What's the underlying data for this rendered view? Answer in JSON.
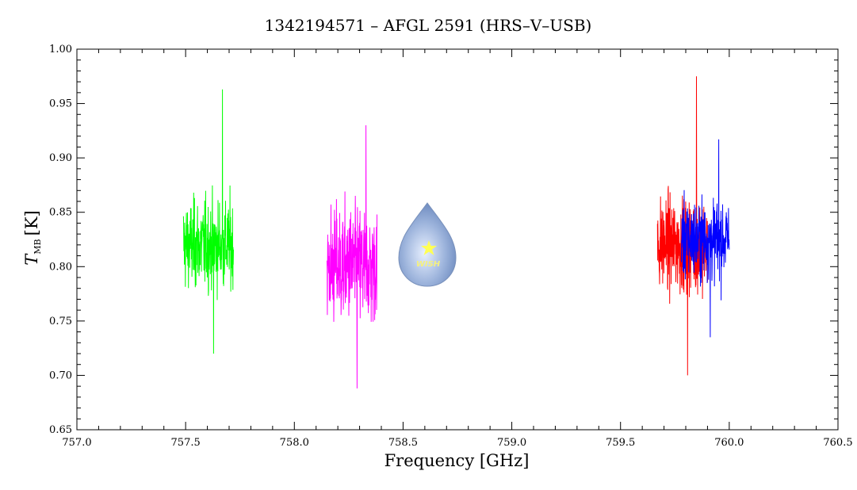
{
  "chart_data": {
    "type": "line",
    "title": "1342194571 – AFGL 2591 (HRS–V–USB)",
    "xlabel": "Frequency [GHz]",
    "ylabel_main": "T",
    "ylabel_sub": "MB",
    "ylabel_unit": "[K]",
    "xlim": [
      757.0,
      760.5
    ],
    "ylim": [
      0.65,
      1.0
    ],
    "x_ticks": [
      "757.0",
      "757.5",
      "758.0",
      "758.5",
      "759.0",
      "759.5",
      "760.0",
      "760.5"
    ],
    "y_ticks": [
      "0.65",
      "0.70",
      "0.75",
      "0.80",
      "0.85",
      "0.90",
      "0.95",
      "1.00"
    ],
    "grid": false,
    "series": [
      {
        "color": "#00ff00",
        "x_range": [
          757.49,
          757.72
        ],
        "center": 0.82,
        "min": 0.72,
        "max": 0.963,
        "noise": 0.028
      },
      {
        "color": "#ff00ff",
        "x_range": [
          758.15,
          758.38
        ],
        "center": 0.8,
        "min": 0.688,
        "max": 0.93,
        "noise": 0.038
      },
      {
        "color": "#ff0000",
        "x_range": [
          759.67,
          759.9
        ],
        "center": 0.82,
        "min": 0.7,
        "max": 0.975,
        "noise": 0.03
      },
      {
        "color": "#0000ff",
        "x_range": [
          759.78,
          760.0
        ],
        "center": 0.825,
        "min": 0.735,
        "max": 0.917,
        "noise": 0.025
      }
    ],
    "logo": {
      "text": "WISH",
      "x": 758.62,
      "y": 0.805
    }
  }
}
